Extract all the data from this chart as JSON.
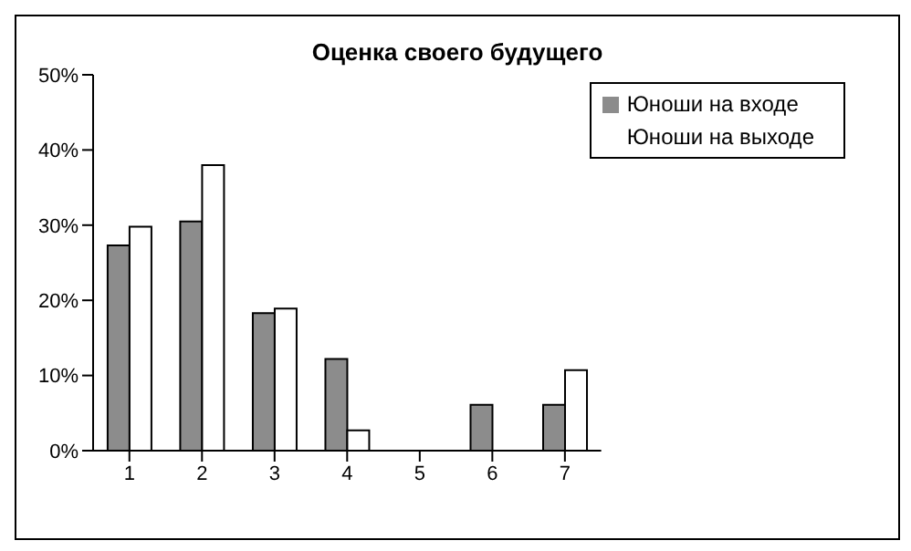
{
  "chart_data": {
    "type": "bar",
    "title": "Оценка своего будущего",
    "categories": [
      "1",
      "2",
      "3",
      "4",
      "5",
      "6",
      "7"
    ],
    "series": [
      {
        "name": "Юноши на входе",
        "color": "#8c8c8c",
        "values": [
          27.3,
          30.5,
          18.3,
          12.2,
          0,
          6.1,
          6.1
        ]
      },
      {
        "name": "Юноши на выходе",
        "color": "#ffffff",
        "values": [
          29.8,
          38.0,
          18.9,
          2.7,
          0,
          0,
          10.7
        ]
      }
    ],
    "ylim": [
      0,
      50
    ],
    "yticks": [
      {
        "value": 0,
        "label": "0%"
      },
      {
        "value": 10,
        "label": "10%"
      },
      {
        "value": 20,
        "label": "20%"
      },
      {
        "value": 30,
        "label": "30%"
      },
      {
        "value": 40,
        "label": "40%"
      },
      {
        "value": 50,
        "label": "50%"
      }
    ],
    "grid": false,
    "legend": "top right"
  }
}
